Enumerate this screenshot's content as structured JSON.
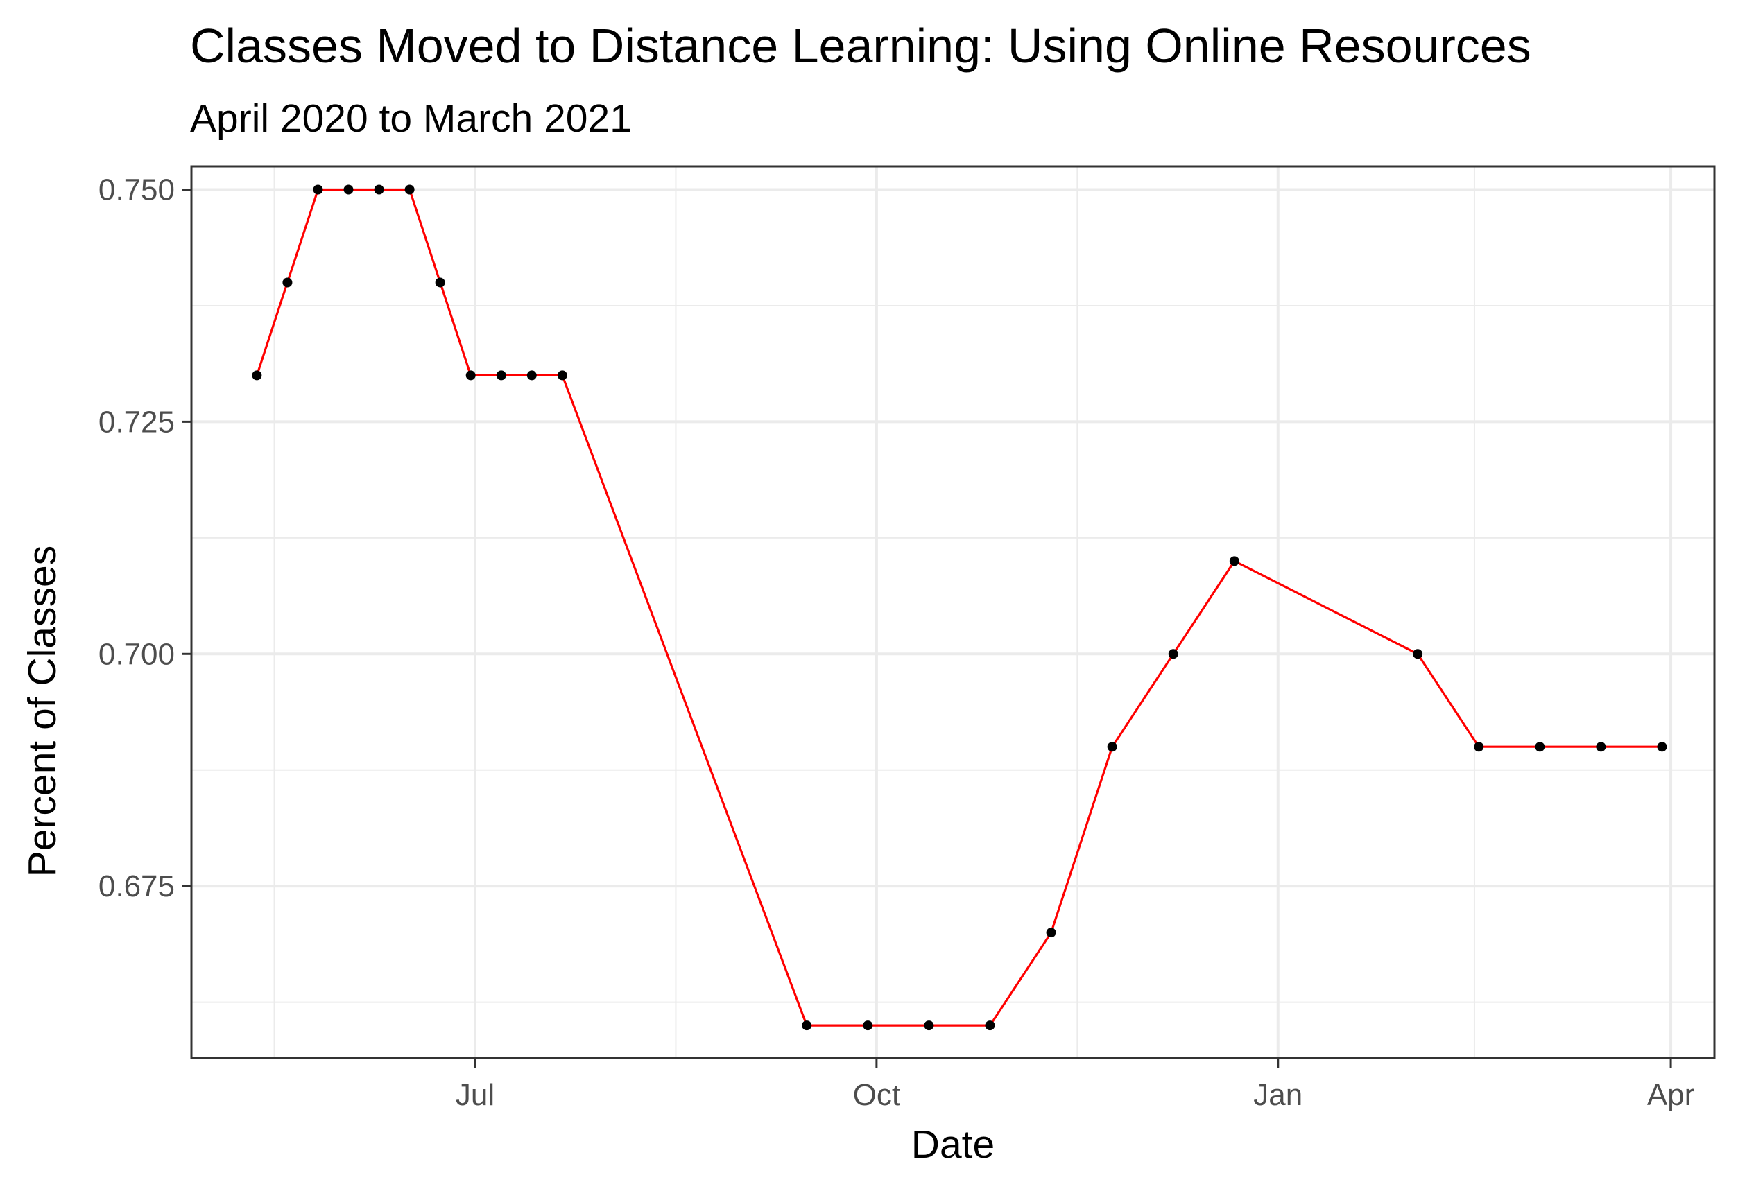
{
  "chart_data": {
    "type": "line",
    "title": "Classes Moved to Distance Learning: Using Online Resources",
    "subtitle": "April 2020 to March 2021",
    "xlabel": "Date",
    "ylabel": "Percent of Classes",
    "x_type": "date",
    "xlim": [
      "2020-04-27",
      "2021-04-11"
    ],
    "ylim": [
      0.6565,
      0.7525
    ],
    "x_ticks": [
      {
        "date": "2020-07-01",
        "label": "Jul"
      },
      {
        "date": "2020-10-01",
        "label": "Oct"
      },
      {
        "date": "2021-01-01",
        "label": "Jan"
      },
      {
        "date": "2021-04-01",
        "label": "Apr"
      }
    ],
    "x_minor_ticks": [
      "2020-05-16",
      "2020-08-16",
      "2020-11-16",
      "2021-02-15"
    ],
    "y_ticks": [
      {
        "value": 0.675,
        "label": "0.675"
      },
      {
        "value": 0.7,
        "label": "0.700"
      },
      {
        "value": 0.725,
        "label": "0.725"
      },
      {
        "value": 0.75,
        "label": "0.750"
      }
    ],
    "y_minor_ticks": [
      0.6625,
      0.6875,
      0.7125,
      0.7375
    ],
    "grid": true,
    "legend": "none",
    "colors": {
      "line": "#ff0000",
      "point": "#000000",
      "grid": "#ebebeb",
      "border": "#333333"
    },
    "series": [
      {
        "x": [
          "2020-05-12",
          "2020-05-19",
          "2020-05-26",
          "2020-06-02",
          "2020-06-09",
          "2020-06-16",
          "2020-06-23",
          "2020-06-30",
          "2020-07-07",
          "2020-07-14",
          "2020-07-21",
          "2020-09-15",
          "2020-09-29",
          "2020-10-13",
          "2020-10-27",
          "2020-11-10",
          "2020-11-24",
          "2020-12-08",
          "2020-12-22",
          "2021-02-02",
          "2021-02-16",
          "2021-03-02",
          "2021-03-16",
          "2021-03-30"
        ],
        "y": [
          0.73,
          0.74,
          0.75,
          0.75,
          0.75,
          0.75,
          0.74,
          0.73,
          0.73,
          0.73,
          0.73,
          0.66,
          0.66,
          0.66,
          0.66,
          0.67,
          0.69,
          0.7,
          0.71,
          0.7,
          0.69,
          0.69,
          0.69,
          0.69
        ]
      }
    ]
  }
}
